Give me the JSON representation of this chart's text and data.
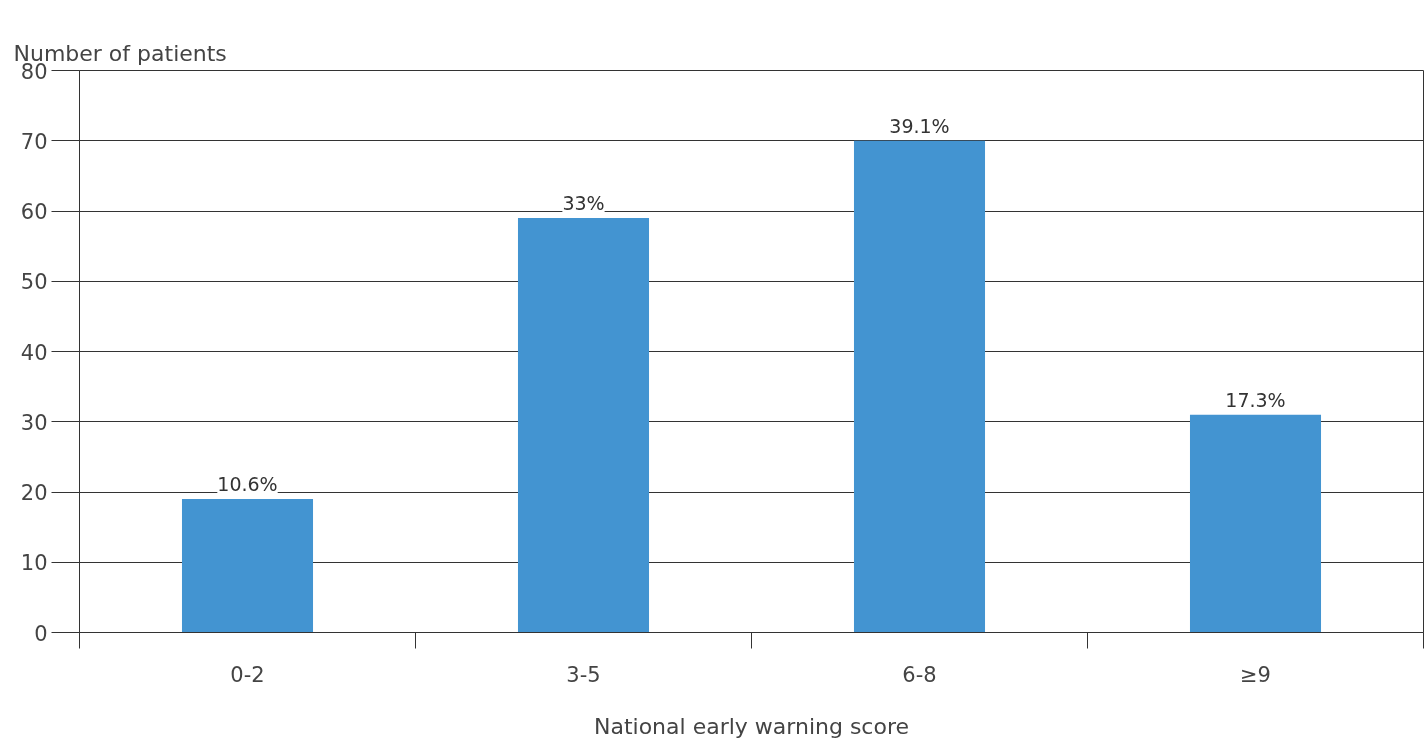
{
  "chart_data": {
    "type": "bar",
    "xlabel": "National early warning score",
    "ylabel": "Number of patients",
    "categories": [
      "0-2",
      "3-5",
      "6-8",
      "≥9"
    ],
    "values": [
      19,
      59,
      70,
      31
    ],
    "annotations": [
      {
        "text": "10.6%",
        "x": "0-2",
        "y": 19
      },
      {
        "text": "33%",
        "x": "3-5",
        "y": 59
      },
      {
        "text": "39.1%",
        "x": "6-8",
        "y": 70
      },
      {
        "text": "17.3%",
        "x": "≥9",
        "y": 31
      }
    ],
    "color": "#4394d1",
    "ylim": [
      0,
      80
    ],
    "yticks": [
      0,
      10,
      20,
      30,
      40,
      50,
      60,
      70,
      80
    ],
    "grid": "y"
  }
}
